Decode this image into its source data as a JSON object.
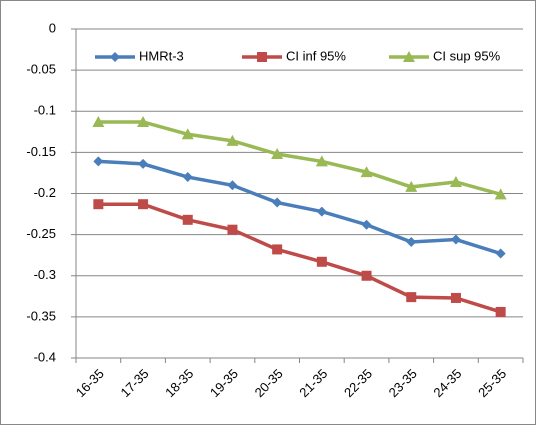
{
  "chart_data": {
    "type": "line",
    "categories": [
      "16-35",
      "17-35",
      "18-35",
      "19-35",
      "20-35",
      "21-35",
      "22-35",
      "23-35",
      "24-35",
      "25-35"
    ],
    "series": [
      {
        "name": "HMRt-3",
        "color": "#4a7ebb",
        "marker": "diamond",
        "values": [
          -0.161,
          -0.164,
          -0.18,
          -0.19,
          -0.211,
          -0.222,
          -0.238,
          -0.259,
          -0.256,
          -0.273
        ]
      },
      {
        "name": "CI inf 95%",
        "color": "#be4b48",
        "marker": "square",
        "values": [
          -0.213,
          -0.213,
          -0.232,
          -0.244,
          -0.268,
          -0.283,
          -0.3,
          -0.326,
          -0.327,
          -0.344
        ]
      },
      {
        "name": "CI sup 95%",
        "color": "#98b954",
        "marker": "triangle",
        "values": [
          -0.113,
          -0.113,
          -0.128,
          -0.136,
          -0.152,
          -0.161,
          -0.174,
          -0.192,
          -0.186,
          -0.201
        ]
      }
    ],
    "ylim": [
      -0.4,
      0
    ],
    "yticks": [
      0,
      -0.05,
      -0.1,
      -0.15,
      -0.2,
      -0.25,
      -0.3,
      -0.35,
      -0.4
    ],
    "grid": true
  }
}
